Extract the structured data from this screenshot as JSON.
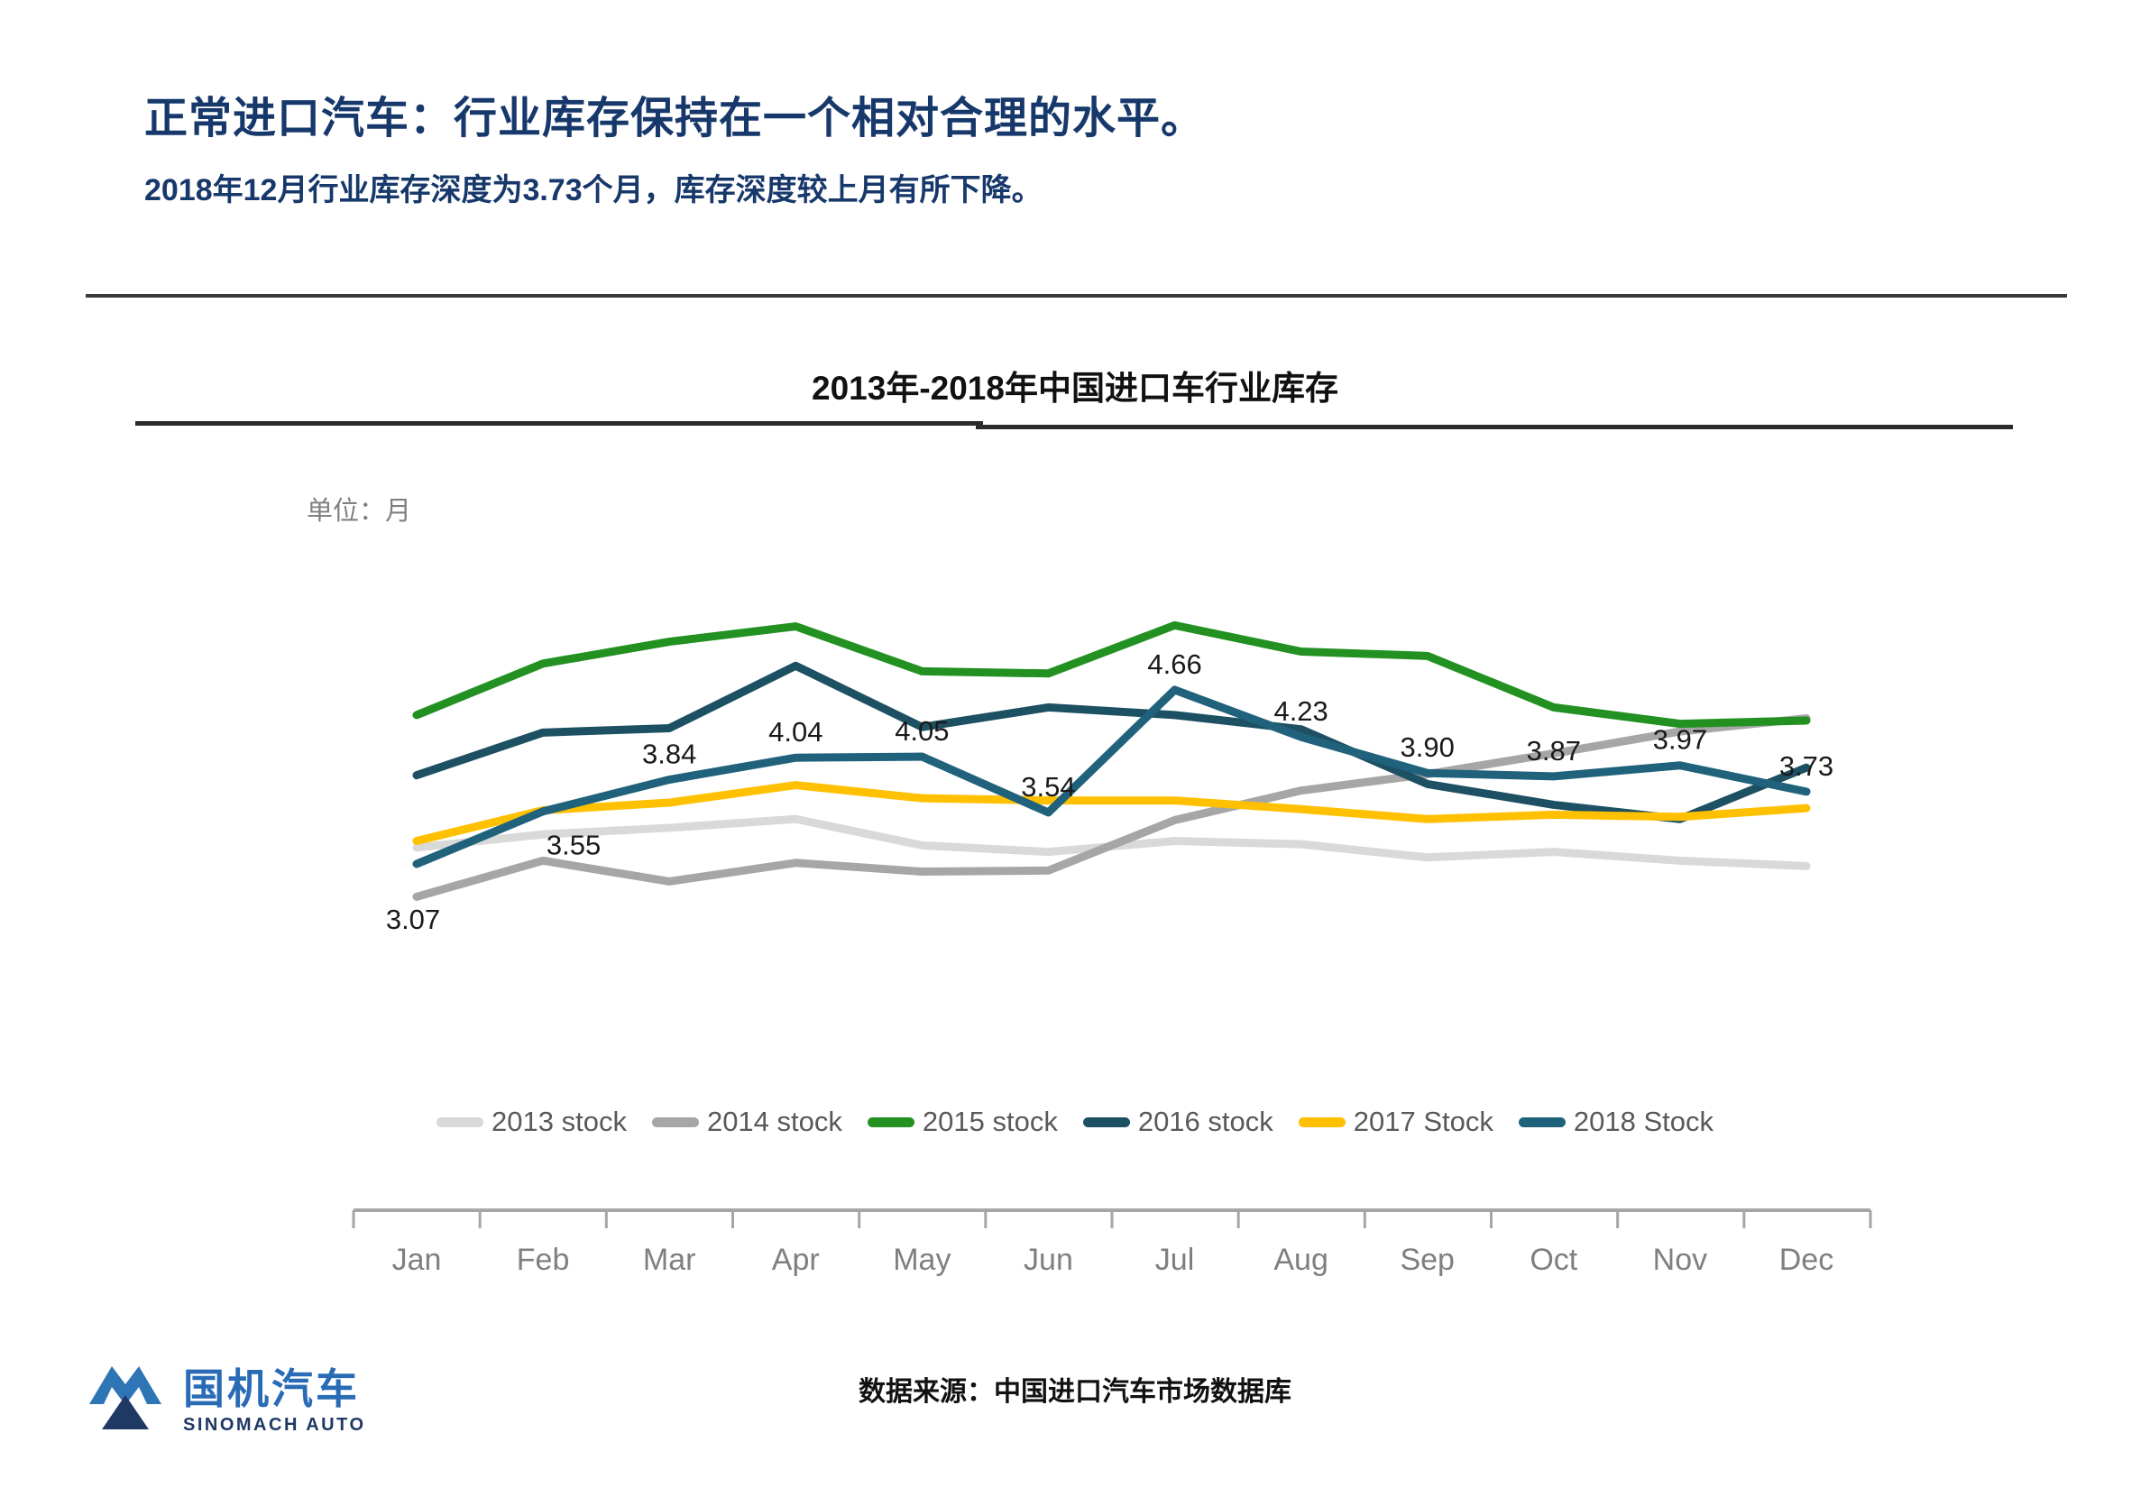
{
  "page": {
    "title": "正常进口汽车：行业库存保持在一个相对合理的水平。",
    "subtitle": "2018年12月行业库存深度为3.73个月，库存深度较上月有所下降。",
    "source": "数据来源：中国进口汽车市场数据库"
  },
  "logo": {
    "cn": "国机汽车",
    "en": "SINOMACH AUTO"
  },
  "chart_data": {
    "type": "line",
    "title": "2013年-2018年中国进口车行业库存",
    "unit_label": "单位：月",
    "grid": false,
    "y_axis_visible": false,
    "legend_position": "bottom",
    "ylim": [
      2.5,
      5.6
    ],
    "categories": [
      "Jan",
      "Feb",
      "Mar",
      "Apr",
      "May",
      "Jun",
      "Jul",
      "Aug",
      "Sep",
      "Oct",
      "Nov",
      "Dec"
    ],
    "series": [
      {
        "name": "2013 stock",
        "color": "#D9D9D9",
        "values": [
          3.22,
          3.34,
          3.4,
          3.48,
          3.24,
          3.18,
          3.28,
          3.25,
          3.13,
          3.18,
          3.1,
          3.05
        ]
      },
      {
        "name": "2014 stock",
        "color": "#A6A6A6",
        "values": [
          2.77,
          3.1,
          2.91,
          3.08,
          3.0,
          3.01,
          3.47,
          3.74,
          3.89,
          4.08,
          4.28,
          4.4
        ]
      },
      {
        "name": "2015 stock",
        "color": "#229122",
        "values": [
          4.43,
          4.9,
          5.1,
          5.24,
          4.83,
          4.81,
          5.25,
          5.01,
          4.97,
          4.5,
          4.35,
          4.38
        ]
      },
      {
        "name": "2016 stock",
        "color": "#1D5063",
        "values": [
          3.88,
          4.27,
          4.31,
          4.88,
          4.32,
          4.5,
          4.43,
          4.3,
          3.8,
          3.61,
          3.48,
          3.95
        ]
      },
      {
        "name": "2017 Stock",
        "color": "#FFC000",
        "values": [
          3.28,
          3.56,
          3.63,
          3.79,
          3.67,
          3.65,
          3.65,
          3.57,
          3.48,
          3.52,
          3.5,
          3.58
        ]
      },
      {
        "name": "2018 Stock",
        "color": "#20627C",
        "show_data_labels": true,
        "values": [
          3.07,
          3.55,
          3.84,
          4.04,
          4.05,
          3.54,
          4.66,
          4.23,
          3.9,
          3.87,
          3.97,
          3.73
        ],
        "data_labels": [
          "3.07",
          "3.55",
          "3.84",
          "4.04",
          "4.05",
          "3.54",
          "4.66",
          "4.23",
          "3.90",
          "3.87",
          "3.97",
          "3.73"
        ]
      }
    ]
  }
}
